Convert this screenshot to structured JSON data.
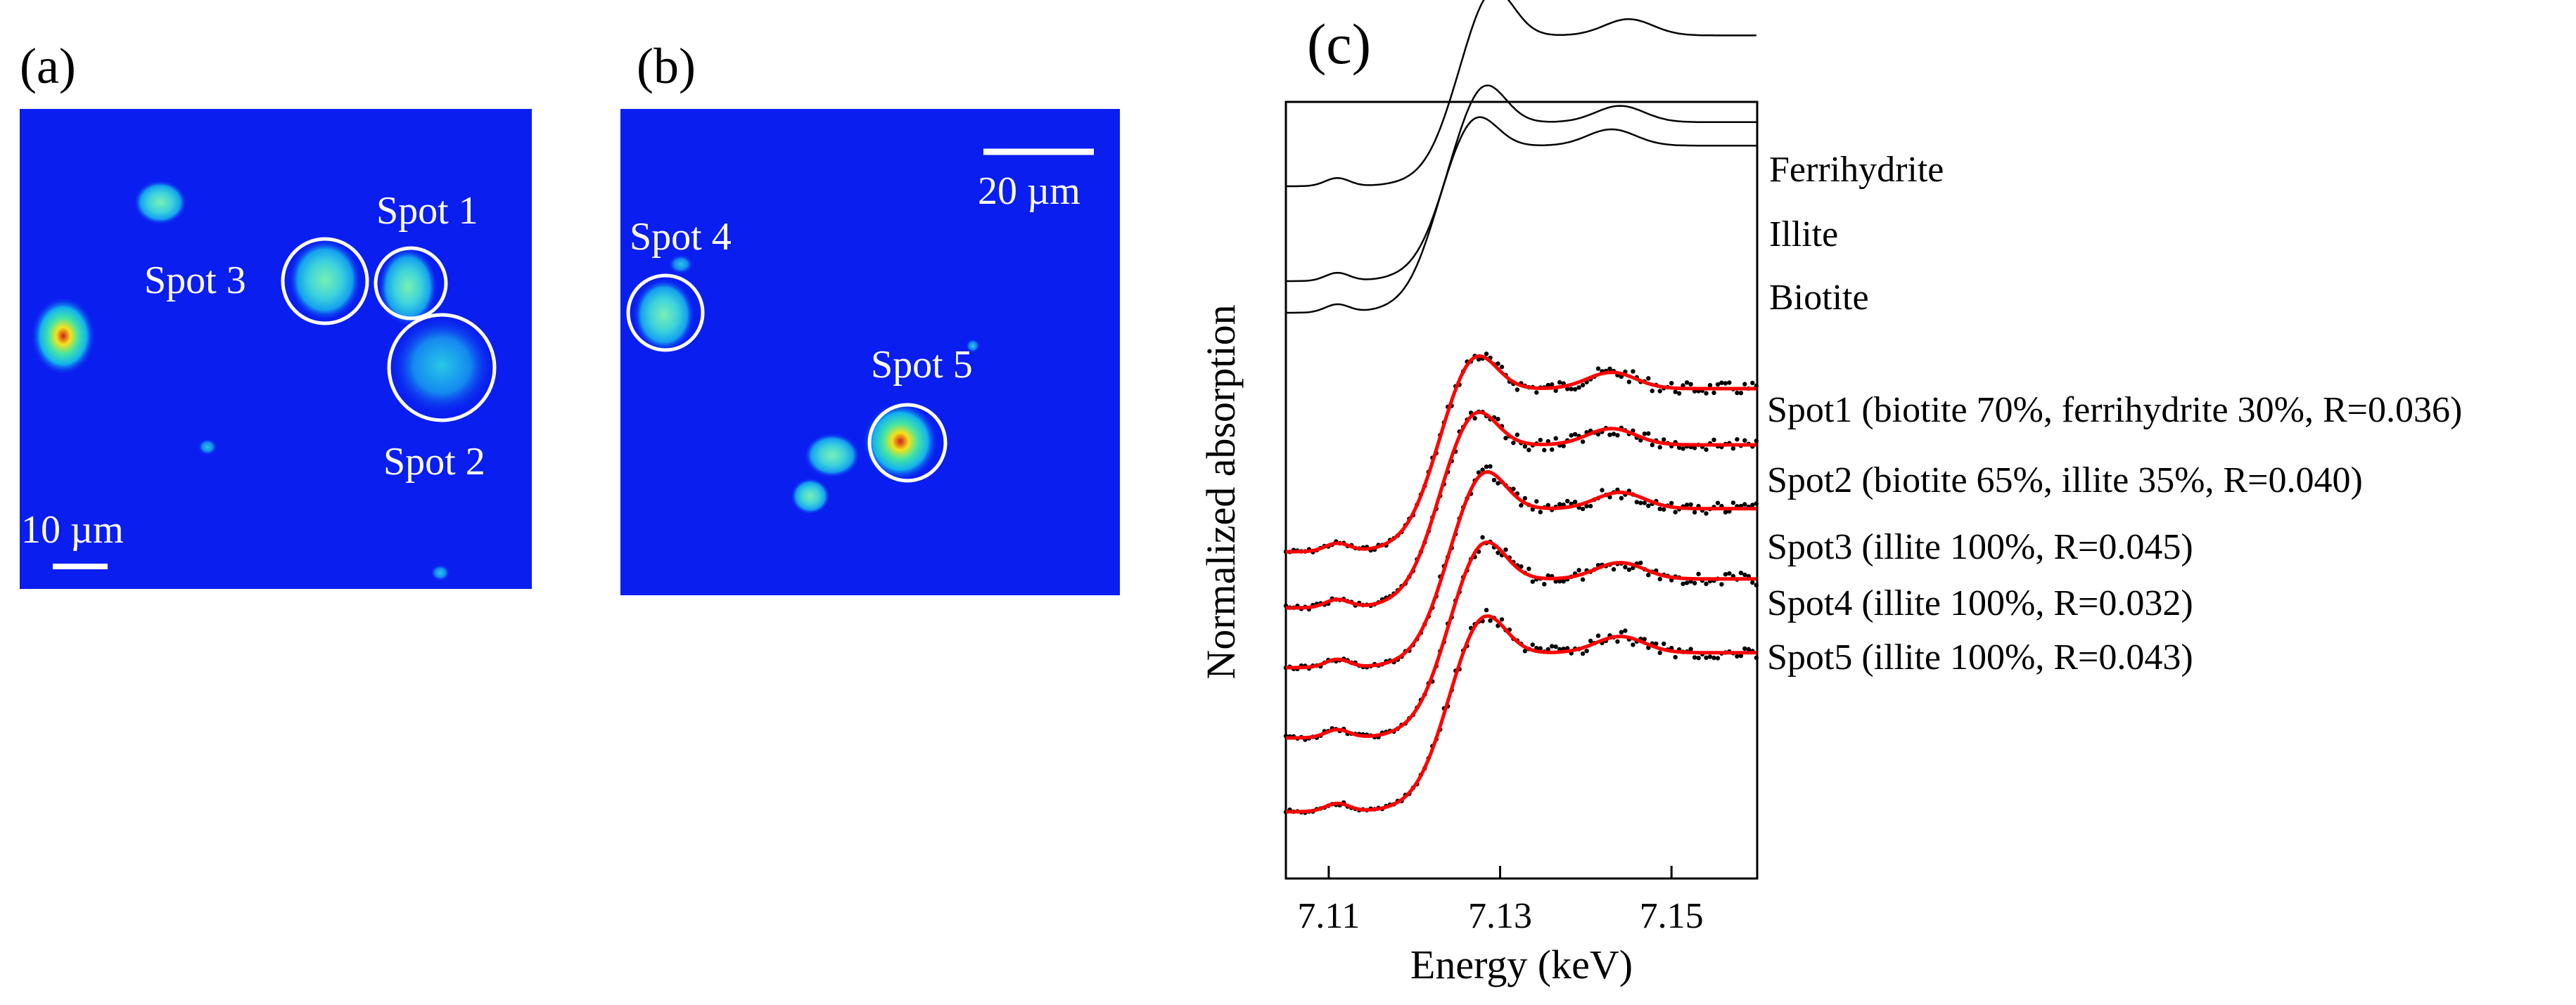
{
  "panel_a": {
    "label": "(a)",
    "scale_bar": "10 µm",
    "spots": [
      {
        "label": "Spot 1"
      },
      {
        "label": "Spot 2"
      },
      {
        "label": "Spot 3"
      }
    ]
  },
  "panel_b": {
    "label": "(b)",
    "scale_bar": "20 µm",
    "spots": [
      {
        "label": "Spot 4"
      },
      {
        "label": "Spot 5"
      }
    ]
  },
  "colors": {
    "map_background": "#0a1ef0",
    "reference_curve": "#000000",
    "fit_curve": "#ff0000",
    "data_points": "#000000",
    "circle": "#ffffff"
  },
  "chart_data": {
    "type": "line",
    "panel_label": "(c)",
    "xlabel": "Energy (keV)",
    "ylabel": "Normalized absorption",
    "xlim": [
      7.105,
      7.16
    ],
    "xticks": [
      "7.11",
      "7.13",
      "7.15"
    ],
    "y_tick_labels": false,
    "grid": false,
    "stacking": "vertically offset spectra",
    "references": [
      {
        "label": "Ferrihydrite",
        "pre_edge": 0.0,
        "peak_energy": 7.129,
        "peak": 1.0,
        "post_edge": 0.74
      },
      {
        "label": "Illite",
        "pre_edge": 0.0,
        "peak_energy": 7.128,
        "peak": 1.0,
        "post_edge": 0.78
      },
      {
        "label": "Biotite",
        "pre_edge": 0.0,
        "peak_energy": 7.127,
        "peak": 1.0,
        "post_edge": 0.82
      }
    ],
    "samples": [
      {
        "label": "Spot1 (biotite 70%, ferrihydrite 30%, R=0.036)",
        "peak_energy": 7.127,
        "post_edge": 0.8,
        "fit_color": "#ff0000"
      },
      {
        "label": "Spot2 (biotite 65%, illite 35%, R=0.040)",
        "peak_energy": 7.127,
        "post_edge": 0.8,
        "fit_color": "#ff0000"
      },
      {
        "label": "Spot3 (illite 100%, R=0.045)",
        "peak_energy": 7.128,
        "post_edge": 0.78,
        "fit_color": "#ff0000"
      },
      {
        "label": "Spot4 (illite 100%, R=0.032)",
        "peak_energy": 7.128,
        "post_edge": 0.78,
        "fit_color": "#ff0000"
      },
      {
        "label": "Spot5 (illite 100%, R=0.043)",
        "peak_energy": 7.128,
        "post_edge": 0.78,
        "fit_color": "#ff0000"
      }
    ]
  }
}
